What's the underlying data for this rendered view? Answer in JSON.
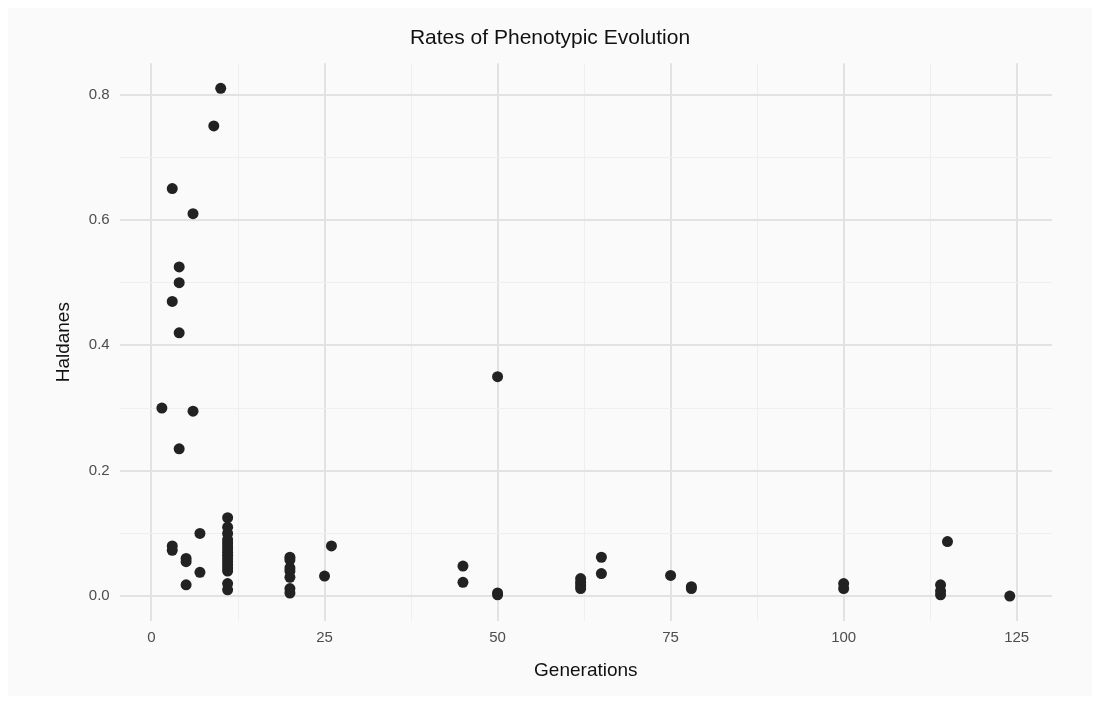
{
  "chart_data": {
    "type": "scatter",
    "title": "Rates of Phenotypic Evolution",
    "xlabel": "Generations",
    "ylabel": "Haldanes",
    "x": [
      10,
      9,
      3,
      6,
      4,
      4,
      3,
      4,
      1.5,
      6,
      4,
      3,
      3,
      5,
      5,
      7,
      7,
      5,
      11,
      11,
      11,
      11,
      11,
      11,
      11,
      11,
      11,
      11,
      11,
      11,
      11,
      11,
      11,
      11,
      20,
      20,
      20,
      20,
      20,
      20,
      20,
      25,
      26,
      45,
      45,
      50,
      50,
      50,
      62,
      62,
      62,
      62,
      65,
      65,
      75,
      78,
      78,
      100,
      100,
      114,
      114,
      114,
      115,
      124
    ],
    "series": [
      {
        "color": "#222222",
        "values": [
          0.81,
          0.75,
          0.65,
          0.61,
          0.525,
          0.5,
          0.47,
          0.42,
          0.3,
          0.295,
          0.235,
          0.08,
          0.073,
          0.06,
          0.055,
          0.1,
          0.038,
          0.018,
          0.125,
          0.11,
          0.1,
          0.09,
          0.085,
          0.08,
          0.075,
          0.07,
          0.065,
          0.06,
          0.055,
          0.05,
          0.045,
          0.04,
          0.02,
          0.01,
          0.062,
          0.058,
          0.045,
          0.04,
          0.03,
          0.012,
          0.005,
          0.032,
          0.08,
          0.048,
          0.022,
          0.35,
          0.005,
          0.002,
          0.028,
          0.022,
          0.017,
          0.012,
          0.062,
          0.036,
          0.033,
          0.015,
          0.012,
          0.02,
          0.012,
          0.018,
          0.008,
          0.002,
          0.087,
          0
        ]
      }
    ],
    "xlim": [
      -4.6,
      130.1
    ],
    "ylim": [
      -0.04,
      0.85
    ],
    "xticks": [
      0,
      {
        "value": 12.5,
        "label": null
      },
      25,
      {
        "value": 37.5,
        "label": null
      },
      50,
      {
        "value": 62.5,
        "label": null
      },
      75,
      {
        "value": 87.5,
        "label": null
      },
      100,
      {
        "value": 112.5,
        "label": null
      },
      125
    ],
    "yticks": [
      {
        "value": 0,
        "label": "0.0"
      },
      {
        "value": 0.1,
        "label": null
      },
      0.2,
      {
        "value": 0.3,
        "label": null
      },
      0.4,
      {
        "value": 0.5,
        "label": null
      },
      0.6,
      {
        "value": 0.7,
        "label": null
      },
      0.8
    ],
    "grid": true,
    "marker": "circle",
    "legend": false
  }
}
